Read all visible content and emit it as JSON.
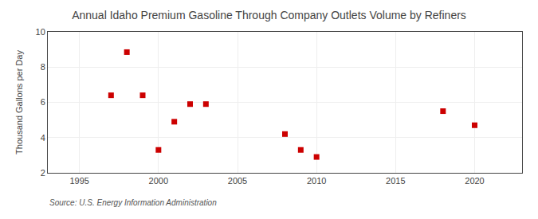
{
  "chart_data": {
    "type": "scatter",
    "title": "Annual Idaho Premium Gasoline Through Company Outlets Volume by Refiners",
    "ylabel": "Thousand Gallons per Day",
    "annotations": [
      "Source: U.S. Energy Information Administration"
    ],
    "x": [
      1997,
      1998,
      1999,
      2000,
      2001,
      2002,
      2003,
      2008,
      2009,
      2010,
      2018,
      2020
    ],
    "values": [
      6.4,
      8.85,
      6.4,
      3.3,
      4.9,
      5.9,
      5.9,
      4.2,
      3.3,
      2.9,
      5.5,
      4.7
    ],
    "color": "#cc0000",
    "marker": "square",
    "xlim": [
      1993,
      2023
    ],
    "xticks": [
      1995,
      2000,
      2005,
      2010,
      2015,
      2020
    ],
    "ylim": [
      2,
      10
    ],
    "yticks": [
      2,
      4,
      6,
      8,
      10
    ],
    "grid": true
  }
}
